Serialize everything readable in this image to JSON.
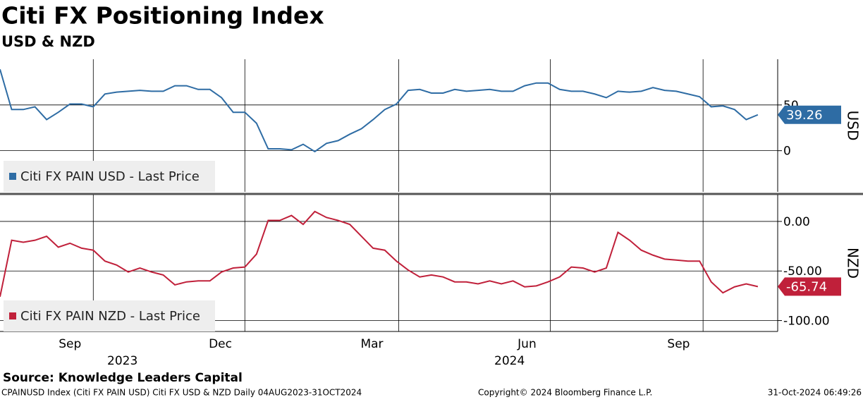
{
  "header": {
    "title": "Citi FX Positioning Index",
    "subtitle": "USD & NZD"
  },
  "footer": {
    "source": "Source: Knowledge Leaders Capital",
    "description": "CPAINUSD Index (Citi FX PAIN USD) Citi FX USD & NZD  Daily 04AUG2023-31OCT2024",
    "copyright": "Copyright© 2024 Bloomberg Finance L.P.",
    "timestamp": "31-Oct-2024 06:49:26"
  },
  "chart_data": [
    {
      "type": "line",
      "y_axis_label": "USD",
      "legend": "bottom-left",
      "xlim": [
        0,
        66.7
      ],
      "xgrid": [
        8.0,
        21.0,
        34.2,
        47.2,
        60.3
      ],
      "ylim": [
        -45,
        100
      ],
      "yticks": [
        0,
        50
      ],
      "grid": true,
      "series": [
        {
          "name": "Citi FX PAIN USD - Last Price",
          "color": "#2e6ca4",
          "values": [
            89,
            45,
            45,
            48,
            34,
            42,
            51,
            51,
            48,
            62,
            64,
            65,
            66,
            65,
            65,
            71,
            71,
            67,
            67,
            58,
            42,
            42,
            30,
            2,
            2,
            1,
            7,
            -1,
            8,
            11,
            18,
            24,
            34,
            45,
            51,
            66,
            67,
            63,
            63,
            67,
            65,
            66,
            67,
            65,
            65,
            71,
            74,
            74,
            67,
            65,
            65,
            62,
            58,
            65,
            64,
            65,
            69,
            66,
            65,
            62,
            59,
            48,
            49,
            45,
            34,
            39.26
          ]
        }
      ]
    },
    {
      "type": "line",
      "y_axis_label": "NZD",
      "legend": "bottom-left",
      "xlim": [
        0,
        66.7
      ],
      "xgrid": [
        8.0,
        21.0,
        34.2,
        47.2,
        60.3
      ],
      "xticks": [
        {
          "value": 6.0,
          "label": "Sep"
        },
        {
          "value": 18.9,
          "label": "Dec"
        },
        {
          "value": 31.9,
          "label": "Mar"
        },
        {
          "value": 45.2,
          "label": "Jun"
        },
        {
          "value": 58.2,
          "label": "Sep"
        }
      ],
      "xticks_major": [
        {
          "value": 10.5,
          "label": "2023"
        },
        {
          "value": 43.7,
          "label": "2024"
        }
      ],
      "ylim": [
        -111,
        27
      ],
      "yticks": [
        {
          "value": 0,
          "label": "0.00"
        },
        {
          "value": -50,
          "label": "-50.00"
        },
        {
          "value": -100,
          "label": "-100.00"
        }
      ],
      "grid": true,
      "series": [
        {
          "name": "Citi FX PAIN NZD - Last Price",
          "color": "#c0203a",
          "values": [
            -76,
            -19,
            -21,
            -19,
            -15,
            -26,
            -22,
            -27,
            -29,
            -40,
            -44,
            -51,
            -47,
            -51,
            -54,
            -64,
            -61,
            -60,
            -60,
            -51,
            -47,
            -46,
            -33,
            1,
            1,
            6,
            -3,
            10,
            4,
            1,
            -3,
            -15,
            -27,
            -29,
            -40,
            -49,
            -56,
            -54,
            -56,
            -61,
            -61,
            -63,
            -60,
            -63,
            -60,
            -66,
            -65,
            -61,
            -56,
            -46,
            -47,
            -51,
            -47,
            -11,
            -19,
            -29,
            -34,
            -38,
            -39,
            -40,
            -40,
            -61,
            -72,
            -66,
            -63,
            -65.74
          ]
        }
      ]
    }
  ]
}
